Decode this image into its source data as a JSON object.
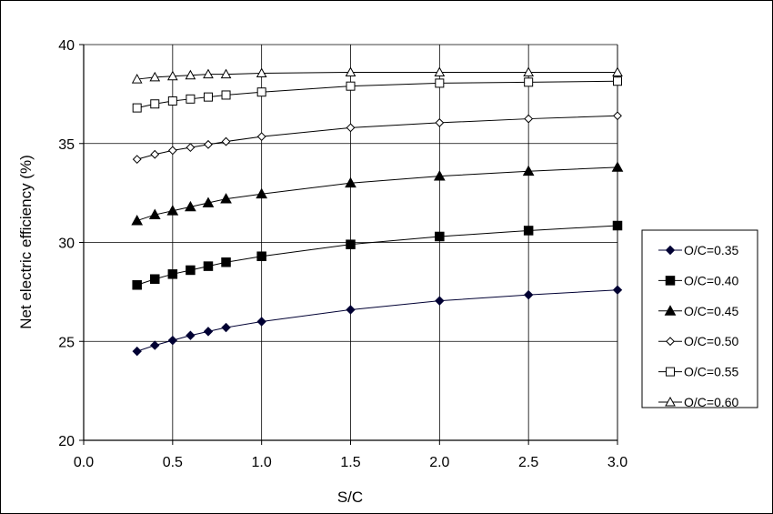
{
  "chart_data": {
    "type": "line",
    "title": "",
    "xlabel": "S/C",
    "ylabel": "Net electric efficiency (%)",
    "xlim": [
      0.0,
      3.0
    ],
    "ylim": [
      20,
      40
    ],
    "x_ticks": [
      "0.0",
      "0.5",
      "1.0",
      "1.5",
      "2.0",
      "2.5",
      "3.0"
    ],
    "y_ticks": [
      "20",
      "25",
      "30",
      "35",
      "40"
    ],
    "grid": true,
    "legend_position": "right",
    "x": [
      0.3,
      0.4,
      0.5,
      0.6,
      0.7,
      0.8,
      1.0,
      1.5,
      2.0,
      2.5,
      3.0
    ],
    "series": [
      {
        "name": "O/C=0.35",
        "marker": "diamond-filled",
        "color": "#000033",
        "values": [
          24.5,
          24.8,
          25.05,
          25.3,
          25.5,
          25.7,
          26.0,
          26.6,
          27.05,
          27.35,
          27.6
        ]
      },
      {
        "name": "O/C=0.40",
        "marker": "square-filled",
        "color": "#000000",
        "values": [
          27.85,
          28.15,
          28.4,
          28.6,
          28.8,
          29.0,
          29.3,
          29.9,
          30.3,
          30.6,
          30.85
        ]
      },
      {
        "name": "O/C=0.45",
        "marker": "triangle-filled",
        "color": "#000000",
        "values": [
          31.1,
          31.4,
          31.6,
          31.8,
          32.0,
          32.2,
          32.45,
          33.0,
          33.35,
          33.6,
          33.8
        ]
      },
      {
        "name": "O/C=0.50",
        "marker": "diamond-open",
        "color": "#000000",
        "values": [
          34.2,
          34.45,
          34.65,
          34.8,
          34.95,
          35.1,
          35.35,
          35.8,
          36.05,
          36.25,
          36.4
        ]
      },
      {
        "name": "O/C=0.55",
        "marker": "square-open",
        "color": "#000000",
        "values": [
          36.8,
          37.0,
          37.15,
          37.25,
          37.35,
          37.45,
          37.6,
          37.9,
          38.05,
          38.1,
          38.15
        ]
      },
      {
        "name": "O/C=0.60",
        "marker": "triangle-open",
        "color": "#000000",
        "values": [
          38.25,
          38.35,
          38.4,
          38.45,
          38.5,
          38.5,
          38.55,
          38.6,
          38.6,
          38.6,
          38.6
        ]
      }
    ]
  }
}
